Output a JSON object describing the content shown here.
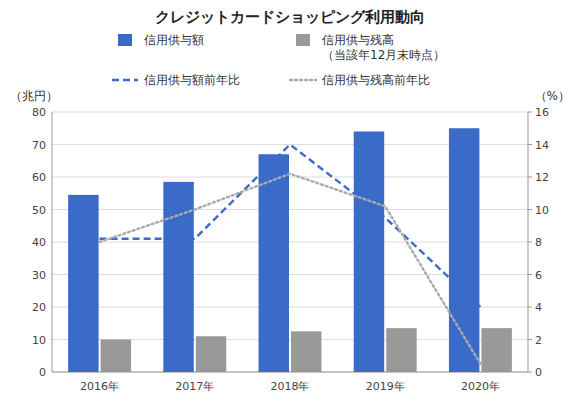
{
  "chart_data": {
    "type": "bar",
    "title": "クレジットカードショッピング利用動向",
    "categories": [
      "2016年",
      "2017年",
      "2018年",
      "2019年",
      "2020年"
    ],
    "series": [
      {
        "name": "信用供与額",
        "type": "bar",
        "color": "#3B6BC8",
        "values": [
          54.5,
          58.5,
          67.0,
          74.0,
          75.0
        ]
      },
      {
        "name": "信用供与残高\n（当該年12月末時点）",
        "type": "bar",
        "color": "#999999",
        "values": [
          10.0,
          11.0,
          12.5,
          13.5,
          13.5
        ]
      },
      {
        "name": "信用供与額前年比",
        "type": "line",
        "axis": "y2",
        "line_style": "dashed",
        "color": "#3B6BC8",
        "values": [
          8.2,
          8.2,
          14.0,
          9.5,
          4.0
        ]
      },
      {
        "name": "信用供与残高前年比",
        "type": "line",
        "axis": "y2",
        "line_style": "dotted",
        "color": "#AAAAAA",
        "values": [
          8.0,
          10.0,
          12.2,
          10.2,
          0.5
        ]
      }
    ],
    "y_label": "（兆円）",
    "y2_label": "（%）",
    "ylim": [
      0,
      80
    ],
    "yticks": [
      0,
      10,
      20,
      30,
      40,
      50,
      60,
      70,
      80
    ],
    "y2lim": [
      0,
      16
    ],
    "y2ticks": [
      0,
      2,
      4,
      6,
      8,
      10,
      12,
      14,
      16
    ],
    "grid": true,
    "legend": "top"
  }
}
